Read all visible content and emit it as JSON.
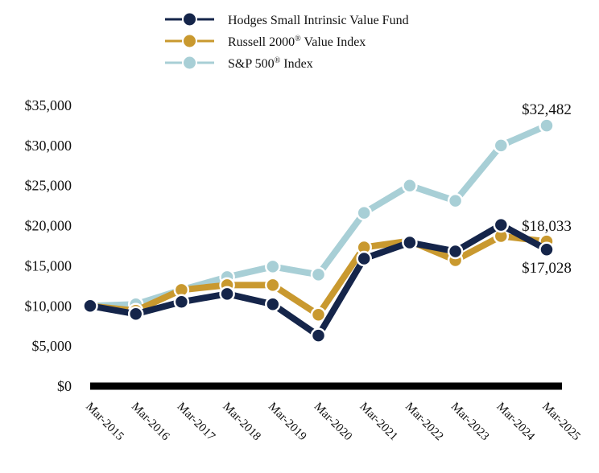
{
  "chart_data": {
    "type": "line",
    "title": "",
    "xlabel": "",
    "ylabel": "",
    "ylim": [
      0,
      35000
    ],
    "yticks": [
      0,
      5000,
      10000,
      15000,
      20000,
      25000,
      30000,
      35000
    ],
    "ytick_labels": [
      "$0",
      "$5,000",
      "$10,000",
      "$15,000",
      "$20,000",
      "$25,000",
      "$30,000",
      "$35,000"
    ],
    "categories": [
      "Mar-2015",
      "Mar-2016",
      "Mar-2017",
      "Mar-2018",
      "Mar-2019",
      "Mar-2020",
      "Mar-2021",
      "Mar-2022",
      "Mar-2023",
      "Mar-2024",
      "Mar-2025"
    ],
    "legend_position": "top",
    "grid": false,
    "series": [
      {
        "key": "sp500",
        "name": "S&P 500",
        "reg": "®",
        "suffix": " Index",
        "color": "#a8cfd6",
        "values": [
          10000,
          10200,
          12000,
          13600,
          14900,
          13900,
          21600,
          25000,
          23100,
          30000,
          32482
        ]
      },
      {
        "key": "russell",
        "name": "Russell 2000",
        "reg": "®",
        "suffix": " Value Index",
        "color": "#c9992f",
        "values": [
          10000,
          9400,
          12000,
          12600,
          12600,
          8900,
          17300,
          18100,
          15700,
          18700,
          18033
        ]
      },
      {
        "key": "hodges",
        "name": "Hodges Small Intrinsic Value Fund",
        "reg": "",
        "suffix": "",
        "color": "#15254a",
        "values": [
          10000,
          9000,
          10500,
          11500,
          10200,
          6300,
          15900,
          17900,
          16800,
          20100,
          17028
        ]
      }
    ],
    "legend_order": [
      "hodges",
      "russell",
      "sp500"
    ],
    "end_labels": {
      "sp500": "$32,482",
      "russell": "$18,033",
      "hodges": "$17,028"
    }
  }
}
